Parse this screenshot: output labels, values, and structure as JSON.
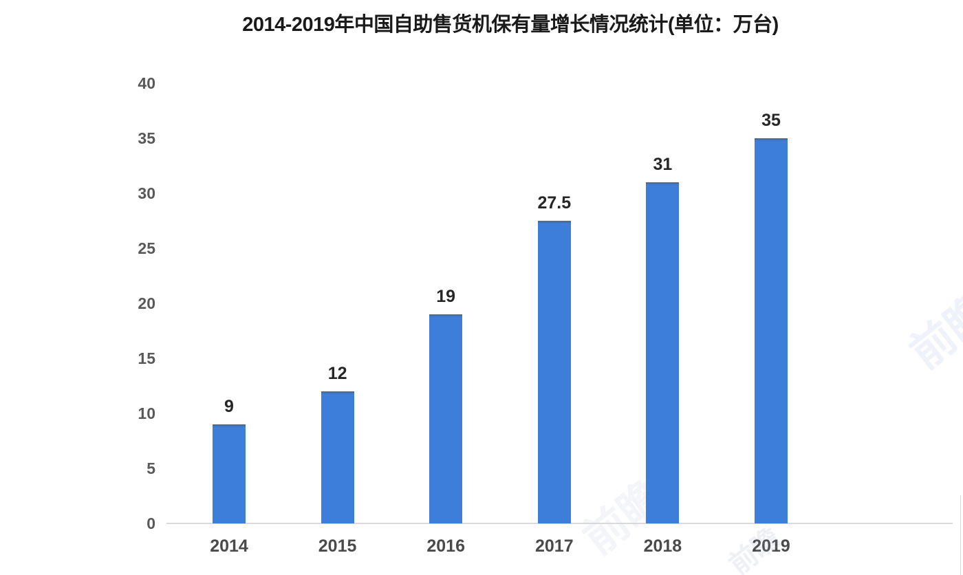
{
  "chart_data": {
    "type": "bar",
    "title": "2014-2019年中国自助售货机保有量增长情况统计(单位：万台)",
    "categories": [
      "2014",
      "2015",
      "2016",
      "2017",
      "2018",
      "2019"
    ],
    "values": [
      9,
      12,
      19,
      27.5,
      31,
      35
    ],
    "value_labels": [
      "9",
      "12",
      "19",
      "27.5",
      "31",
      "35"
    ],
    "xlabel": "",
    "ylabel": "",
    "ylim": [
      0,
      40
    ],
    "yticks": [
      0,
      5,
      10,
      15,
      20,
      25,
      30,
      35,
      40
    ],
    "grid": false,
    "legend": false,
    "bar_color": "#3e7edb",
    "bar_top_edge_color": "#4b6d99",
    "axis_line_color": "#d9d9d9",
    "y_tick_color": "#595959",
    "x_tick_color": "#4a4a4a",
    "value_label_color": "#262626",
    "title_color": "#1a1a1a",
    "background_color": "#ffffff"
  },
  "watermark": {
    "text": "前瞻"
  }
}
